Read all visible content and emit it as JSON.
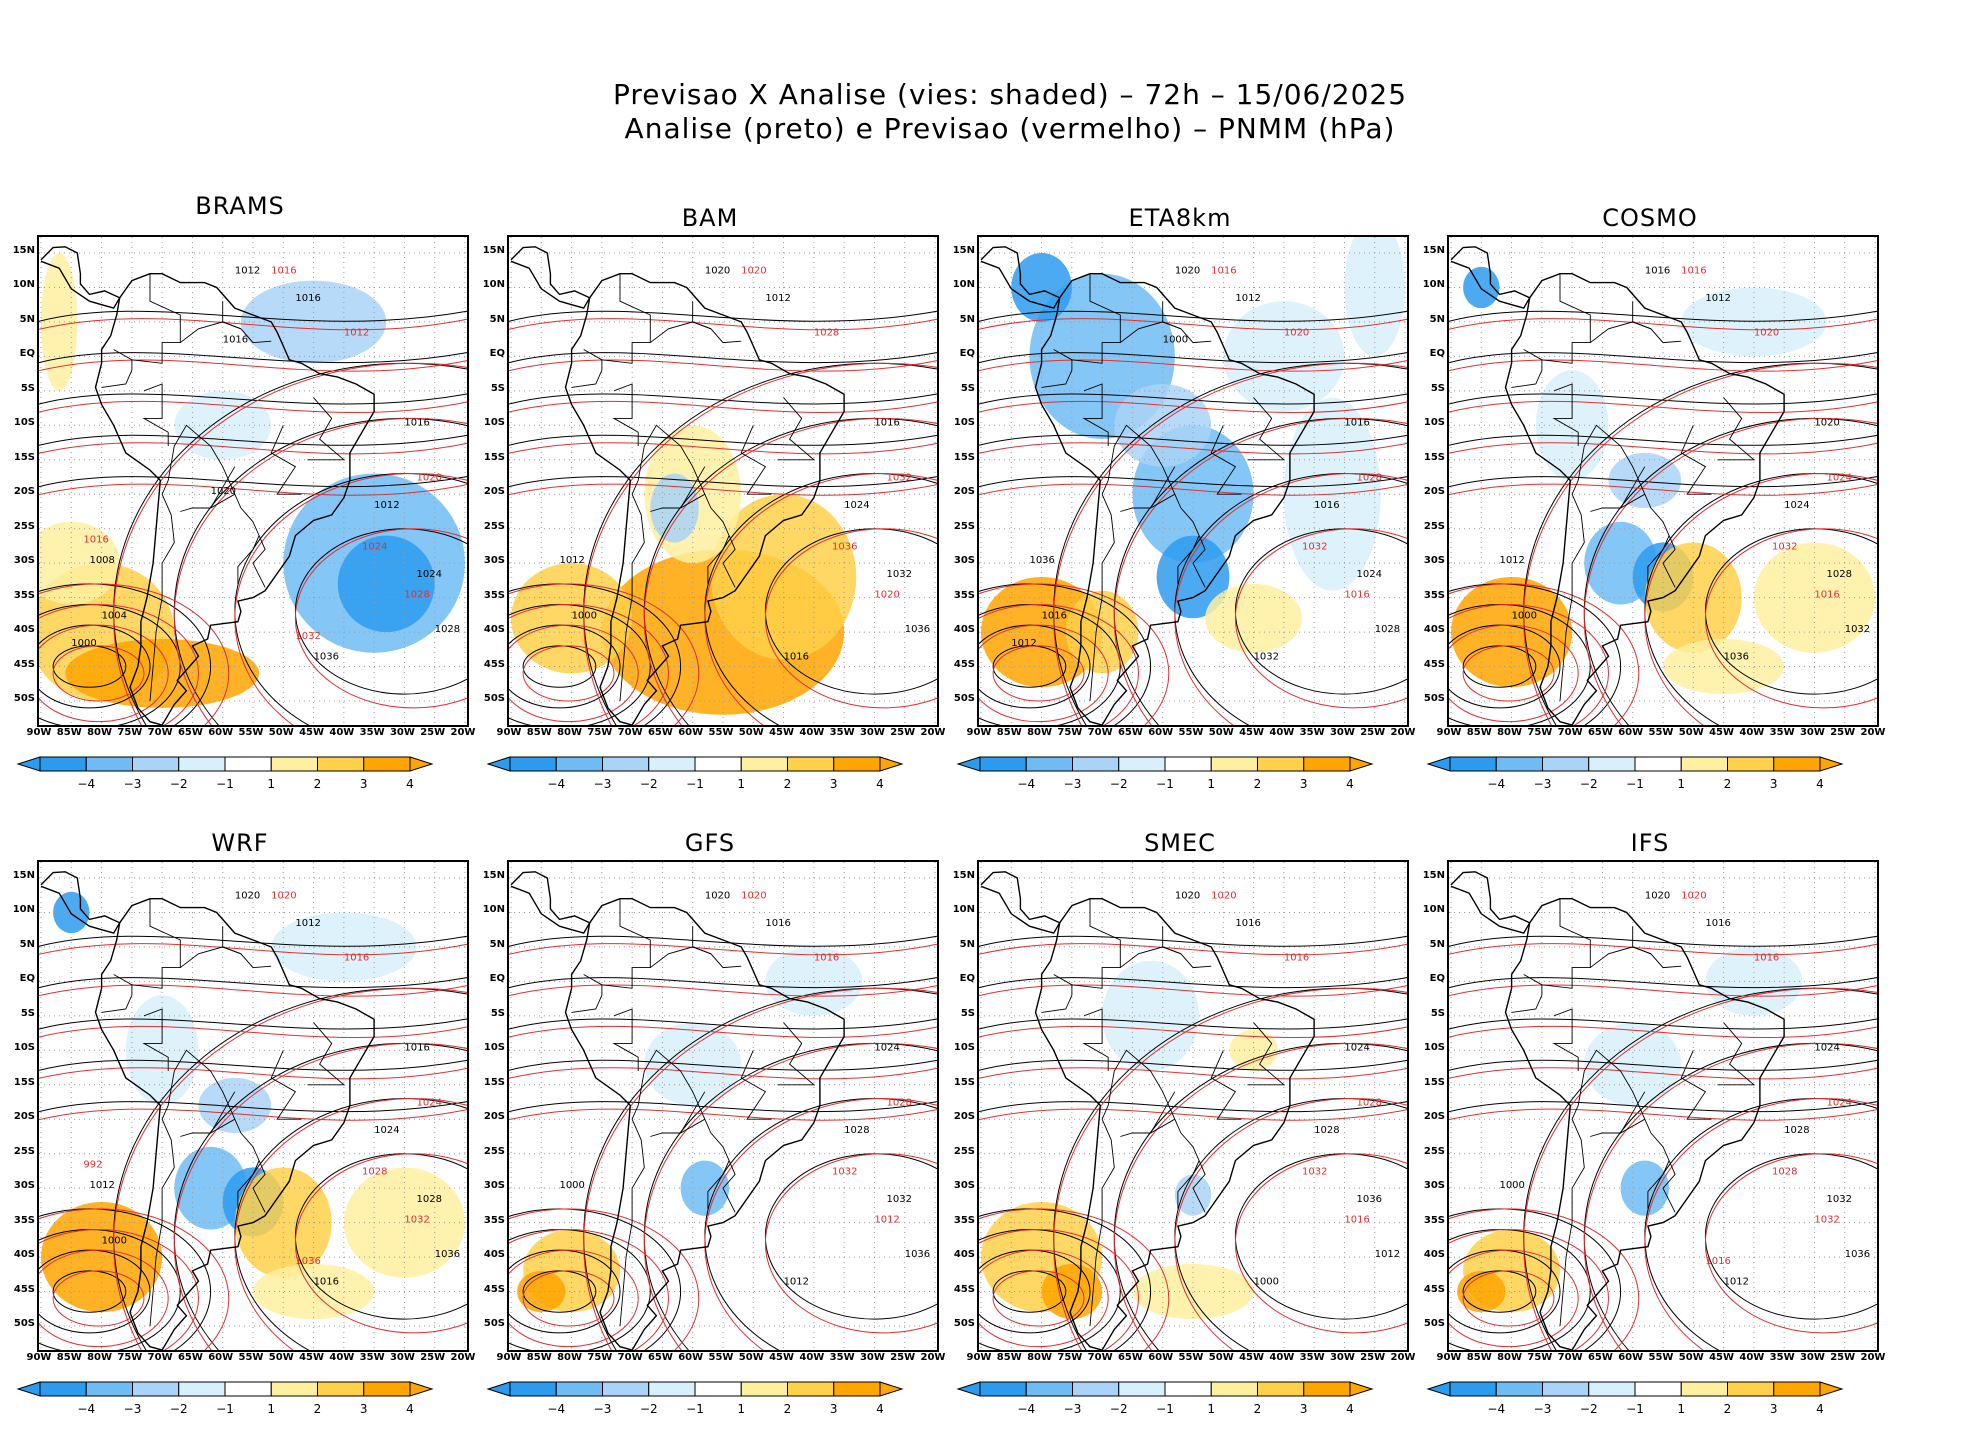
{
  "title": {
    "line1": "Previsao X Analise (vies: shaded) – 72h – 15/06/2025",
    "line2": "Analise (preto) e Previsao (vermelho) – PNMM (hPa)"
  },
  "lat_labels": [
    "15N",
    "10N",
    "5N",
    "EQ",
    "5S",
    "10S",
    "15S",
    "20S",
    "25S",
    "30S",
    "35S",
    "40S",
    "45S",
    "50S"
  ],
  "lon_labels": [
    "90W",
    "85W",
    "80W",
    "75W",
    "70W",
    "65W",
    "60W",
    "55W",
    "50W",
    "45W",
    "40W",
    "35W",
    "30W",
    "25W",
    "20W"
  ],
  "colorbar": {
    "labels": [
      "−4",
      "−3",
      "−2",
      "−1",
      "1",
      "2",
      "3",
      "4"
    ],
    "colors": [
      "#2b9bf0",
      "#6fbcf5",
      "#a9d4f7",
      "#d8f0fb",
      "#ffffff",
      "#fff0a0",
      "#ffd04a",
      "#ffa500"
    ],
    "levels": [
      -4,
      -3,
      -2,
      -1,
      1,
      2,
      3,
      4
    ]
  },
  "palette": {
    "analysis": "#000000",
    "forecast": "#e03030",
    "land": "#000000"
  },
  "panels": [
    {
      "name": "BRAMS",
      "bias": "warm-south",
      "analysis_labels": [
        "1012",
        "1016",
        "1016",
        "1012",
        "1024",
        "1028",
        "1036",
        "1008",
        "1004",
        "1000",
        "1016",
        "1020"
      ],
      "forecast_labels": [
        "1016",
        "1012",
        "1020",
        "1024",
        "1028",
        "1032",
        "1016"
      ]
    },
    {
      "name": "BAM",
      "bias": "warm",
      "analysis_labels": [
        "1020",
        "1012",
        "1016",
        "1024",
        "1032",
        "1036",
        "1016",
        "1012",
        "1000"
      ],
      "forecast_labels": [
        "1020",
        "1028",
        "1032",
        "1036",
        "1020"
      ]
    },
    {
      "name": "ETA8km",
      "bias": "cold",
      "analysis_labels": [
        "1020",
        "1012",
        "1016",
        "1016",
        "1024",
        "1028",
        "1032",
        "1036",
        "1016",
        "1012",
        "1000"
      ],
      "forecast_labels": [
        "1016",
        "1020",
        "1028",
        "1032",
        "1016"
      ]
    },
    {
      "name": "COSMO",
      "bias": "mixed",
      "analysis_labels": [
        "1016",
        "1012",
        "1020",
        "1024",
        "1028",
        "1032",
        "1036",
        "1012",
        "1000"
      ],
      "forecast_labels": [
        "1016",
        "1020",
        "1024",
        "1032",
        "1016"
      ]
    },
    {
      "name": "WRF",
      "bias": "mixed",
      "analysis_labels": [
        "1020",
        "1012",
        "1016",
        "1024",
        "1028",
        "1036",
        "1016",
        "1012",
        "1000"
      ],
      "forecast_labels": [
        "1020",
        "1016",
        "1024",
        "1028",
        "1032",
        "1036",
        "992"
      ]
    },
    {
      "name": "GFS",
      "bias": "neutral",
      "analysis_labels": [
        "1020",
        "1016",
        "1024",
        "1028",
        "1032",
        "1036",
        "1012",
        "1000"
      ],
      "forecast_labels": [
        "1020",
        "1016",
        "1028",
        "1032",
        "1012"
      ]
    },
    {
      "name": "SMEC",
      "bias": "neutral-warm",
      "analysis_labels": [
        "1020",
        "1016",
        "1024",
        "1028",
        "1036",
        "1012",
        "1000"
      ],
      "forecast_labels": [
        "1020",
        "1016",
        "1028",
        "1032",
        "1016"
      ]
    },
    {
      "name": "IFS",
      "bias": "neutral",
      "analysis_labels": [
        "1020",
        "1016",
        "1024",
        "1028",
        "1032",
        "1036",
        "1012",
        "1000"
      ],
      "forecast_labels": [
        "1020",
        "1016",
        "1024",
        "1028",
        "1032",
        "1016"
      ]
    }
  ]
}
